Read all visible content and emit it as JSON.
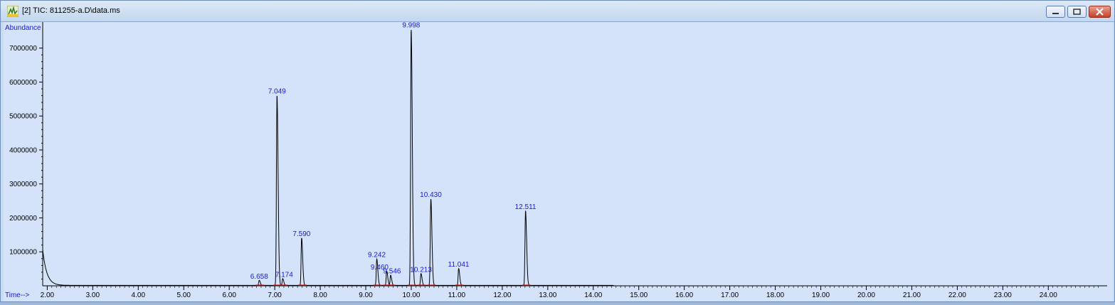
{
  "window": {
    "title": "[2] TIC: 811255-a.D\\data.ms",
    "buttons": [
      "minimize",
      "maximize",
      "close"
    ]
  },
  "colors": {
    "plot_background": "#d4e3f9",
    "trace": "#000000",
    "peak_labels": "#1a1acc",
    "axis_labels": "#1a1acc",
    "baseline_marks": "#d81b1b"
  },
  "chart_data": {
    "type": "line",
    "title": "",
    "xlabel": "Time-->",
    "ylabel": "Abundance",
    "xlim": [
      1.9,
      25.2
    ],
    "ylim": [
      0,
      7600000
    ],
    "x_ticks": [
      "2.00",
      "3.00",
      "4.00",
      "5.00",
      "6.00",
      "7.00",
      "8.00",
      "9.00",
      "10.00",
      "11.00",
      "12.00",
      "13.00",
      "14.00",
      "15.00",
      "16.00",
      "17.00",
      "18.00",
      "19.00",
      "20.00",
      "21.00",
      "22.00",
      "23.00",
      "24.00"
    ],
    "y_ticks": [
      "1000000",
      "2000000",
      "3000000",
      "4000000",
      "5000000",
      "6000000",
      "7000000"
    ],
    "grid": false,
    "legend": "none",
    "trace_end": 14.45,
    "solvent_front": {
      "start": 1.9,
      "height": 1050000
    },
    "peaks": [
      {
        "rt": 6.658,
        "label": "6.658",
        "height": 150000
      },
      {
        "rt": 7.049,
        "label": "7.049",
        "height": 5600000
      },
      {
        "rt": 7.174,
        "label": "7.174",
        "height": 200000
      },
      {
        "rt": 7.59,
        "label": "7.590",
        "height": 1400000
      },
      {
        "rt": 9.242,
        "label": "9.242",
        "height": 780000
      },
      {
        "rt": 9.46,
        "label": "9.460",
        "height": 420000
      },
      {
        "rt": 9.546,
        "label": "9.546",
        "height": 300000
      },
      {
        "rt": 9.998,
        "label": "9.998",
        "height": 7550000
      },
      {
        "rt": 10.213,
        "label": "10.213",
        "height": 350000
      },
      {
        "rt": 10.43,
        "label": "10.430",
        "height": 2550000
      },
      {
        "rt": 11.041,
        "label": "11.041",
        "height": 500000
      },
      {
        "rt": 12.511,
        "label": "12.511",
        "height": 2200000
      }
    ]
  }
}
